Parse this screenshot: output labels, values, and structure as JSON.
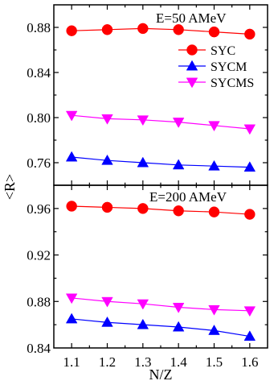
{
  "chart_data": {
    "type": "line",
    "x_label": "N/Z",
    "y_label": "<R>",
    "x_ticks": [
      "1.1",
      "1.2",
      "1.3",
      "1.4",
      "1.5",
      "1.6"
    ],
    "x_values": [
      1.1,
      1.2,
      1.3,
      1.4,
      1.5,
      1.6
    ],
    "xlim": [
      1.05,
      1.65
    ],
    "legend_position": "top-right of upper panel",
    "legend": [
      {
        "name": "SYC",
        "color": "#ff0000",
        "marker": "circle"
      },
      {
        "name": "SYCM",
        "color": "#0000ff",
        "marker": "triangle-up"
      },
      {
        "name": "SYCMS",
        "color": "#ff00ff",
        "marker": "triangle-down"
      }
    ],
    "panels": [
      {
        "annotation": "E=50 AMeV",
        "ylim": [
          0.74,
          0.9
        ],
        "y_ticks": [
          "0.76",
          "0.80",
          "0.84",
          "0.88"
        ],
        "y_tick_values": [
          0.76,
          0.8,
          0.84,
          0.88
        ],
        "series": [
          {
            "name": "SYC",
            "values": [
              0.877,
              0.878,
              0.879,
              0.878,
              0.876,
              0.874
            ]
          },
          {
            "name": "SYCM",
            "values": [
              0.765,
              0.762,
              0.76,
              0.758,
              0.757,
              0.756
            ]
          },
          {
            "name": "SYCMS",
            "values": [
              0.802,
              0.799,
              0.798,
              0.796,
              0.793,
              0.79
            ]
          }
        ]
      },
      {
        "annotation": "E=200 AMeV",
        "ylim": [
          0.84,
          0.98
        ],
        "y_ticks": [
          "0.84",
          "0.88",
          "0.92",
          "0.96"
        ],
        "y_tick_values": [
          0.84,
          0.88,
          0.92,
          0.96
        ],
        "series": [
          {
            "name": "SYC",
            "values": [
              0.962,
              0.961,
              0.96,
              0.958,
              0.957,
              0.955
            ]
          },
          {
            "name": "SYCM",
            "values": [
              0.865,
              0.862,
              0.86,
              0.858,
              0.855,
              0.85
            ]
          },
          {
            "name": "SYCMS",
            "values": [
              0.883,
              0.88,
              0.878,
              0.875,
              0.873,
              0.872
            ]
          }
        ]
      }
    ]
  }
}
